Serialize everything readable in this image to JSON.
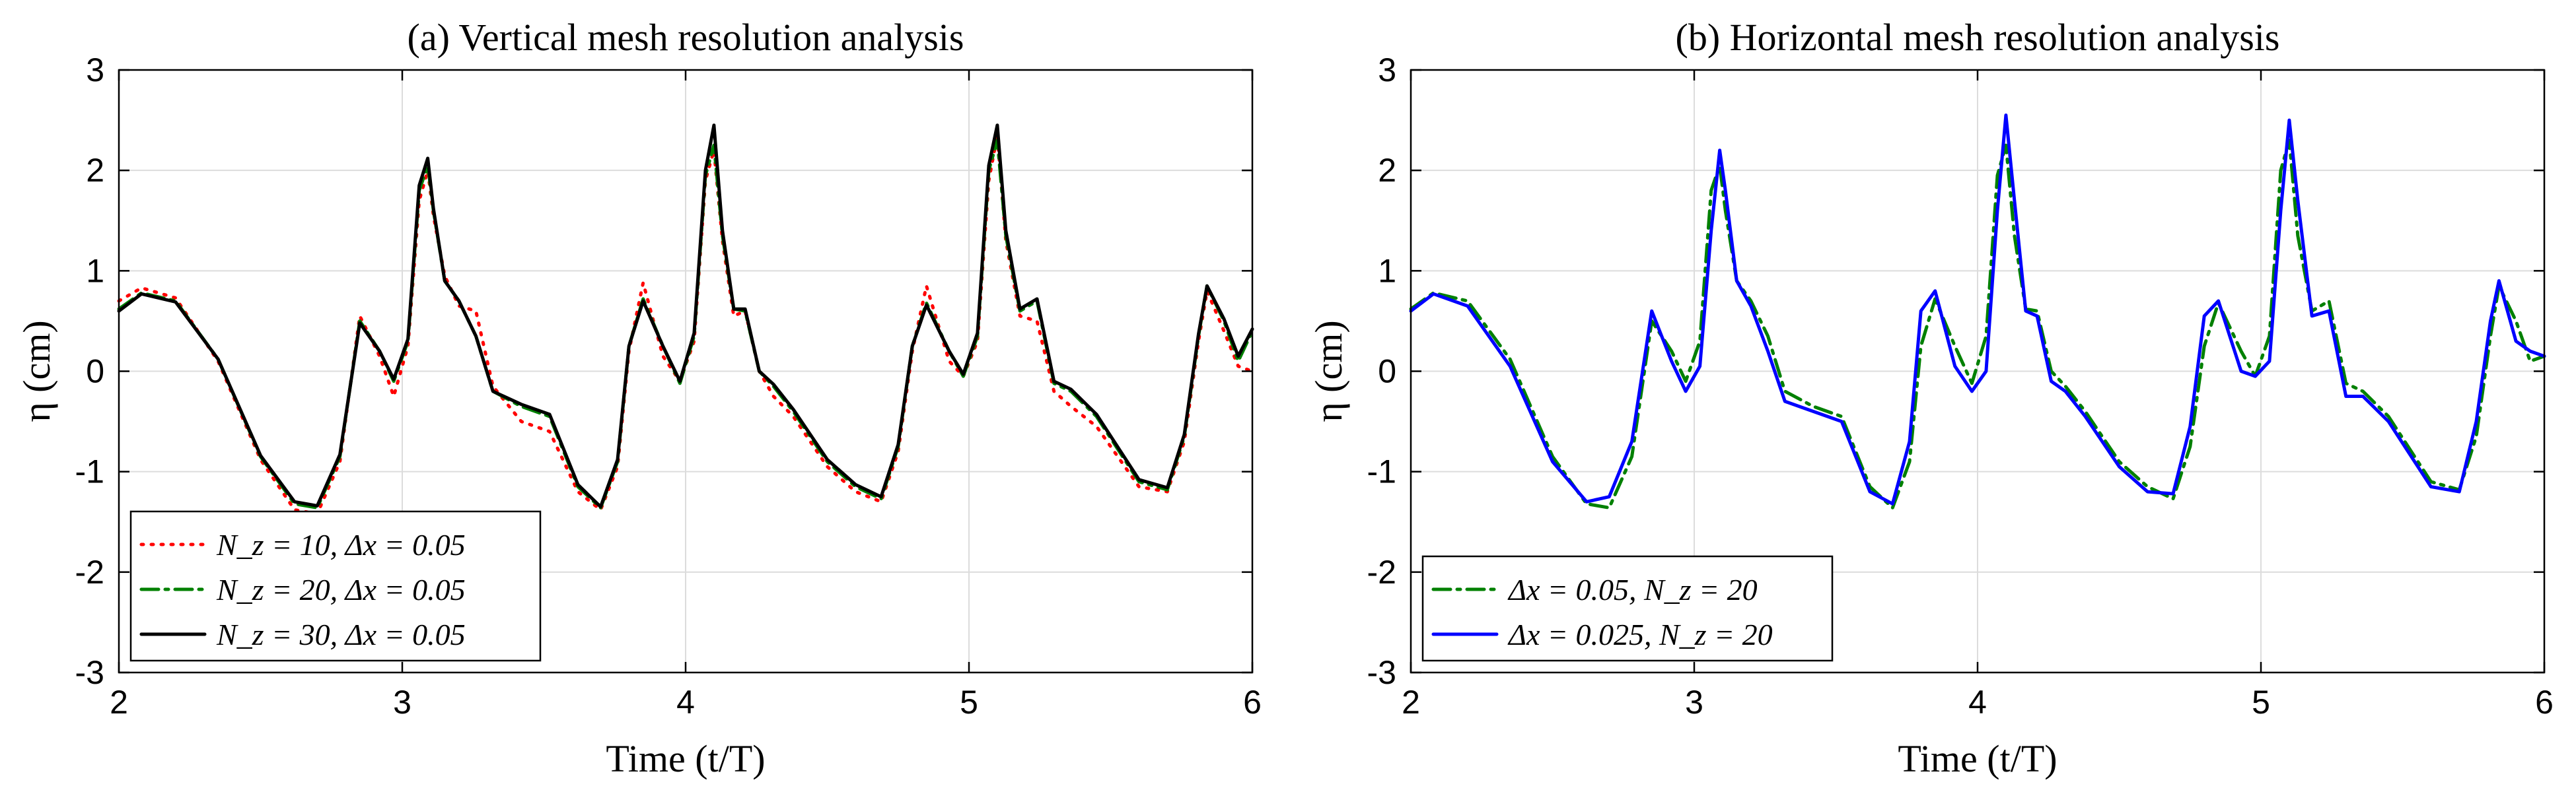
{
  "chart_data": [
    {
      "type": "line",
      "title": "(a) Vertical mesh resolution analysis",
      "xlabel": "Time (t/T)",
      "ylabel": "η (cm)",
      "xlim": [
        2,
        6
      ],
      "ylim": [
        -3,
        3
      ],
      "xticks": [
        "2",
        "3",
        "4",
        "5",
        "6"
      ],
      "yticks": [
        "3",
        "2",
        "1",
        "0",
        "-1",
        "-2",
        "-3"
      ],
      "grid": true,
      "legend_position": "bottom-left",
      "series": [
        {
          "name": "N_z = 10, Δx = 0.05",
          "color": "#ff0000",
          "style": "dotted",
          "x": [
            2.0,
            2.08,
            2.2,
            2.35,
            2.5,
            2.62,
            2.7,
            2.78,
            2.85,
            2.92,
            2.97,
            3.02,
            3.06,
            3.09,
            3.11,
            3.15,
            3.2,
            3.26,
            3.32,
            3.42,
            3.52,
            3.62,
            3.7,
            3.76,
            3.8,
            3.85,
            3.92,
            3.98,
            4.03,
            4.07,
            4.1,
            4.13,
            4.17,
            4.21,
            4.26,
            4.31,
            4.38,
            4.5,
            4.6,
            4.69,
            4.75,
            4.8,
            4.85,
            4.93,
            4.98,
            5.03,
            5.07,
            5.1,
            5.13,
            5.18,
            5.24,
            5.3,
            5.36,
            5.45,
            5.6,
            5.7,
            5.76,
            5.81,
            5.84,
            5.9,
            5.95,
            6.0
          ],
          "values": [
            0.7,
            0.83,
            0.73,
            0.1,
            -0.88,
            -1.38,
            -1.42,
            -0.9,
            0.55,
            0.15,
            -0.25,
            0.25,
            1.7,
            2.0,
            1.55,
            0.95,
            0.65,
            0.6,
            -0.15,
            -0.5,
            -0.6,
            -1.2,
            -1.38,
            -0.95,
            0.2,
            0.88,
            0.15,
            -0.1,
            0.3,
            1.9,
            2.2,
            1.3,
            0.55,
            0.6,
            0.0,
            -0.25,
            -0.45,
            -0.95,
            -1.2,
            -1.3,
            -0.8,
            0.2,
            0.85,
            0.1,
            -0.05,
            0.3,
            1.9,
            2.35,
            1.3,
            0.55,
            0.5,
            -0.2,
            -0.35,
            -0.55,
            -1.15,
            -1.2,
            -0.7,
            0.3,
            0.8,
            0.4,
            0.05,
            0.0
          ]
        },
        {
          "name": "N_z = 20, Δx = 0.05",
          "color": "#008000",
          "style": "dashdot",
          "x": [
            2.0,
            2.08,
            2.2,
            2.35,
            2.5,
            2.62,
            2.7,
            2.78,
            2.85,
            2.92,
            2.97,
            3.02,
            3.06,
            3.09,
            3.11,
            3.15,
            3.2,
            3.26,
            3.32,
            3.42,
            3.52,
            3.62,
            3.7,
            3.76,
            3.8,
            3.85,
            3.92,
            3.98,
            4.03,
            4.07,
            4.1,
            4.13,
            4.17,
            4.21,
            4.26,
            4.31,
            4.38,
            4.5,
            4.6,
            4.69,
            4.75,
            4.8,
            4.85,
            4.93,
            4.98,
            5.03,
            5.07,
            5.1,
            5.13,
            5.18,
            5.24,
            5.3,
            5.36,
            5.45,
            5.6,
            5.7,
            5.76,
            5.81,
            5.84,
            5.9,
            5.95,
            6.0
          ],
          "values": [
            0.62,
            0.78,
            0.7,
            0.12,
            -0.85,
            -1.32,
            -1.36,
            -0.85,
            0.5,
            0.2,
            -0.1,
            0.3,
            1.8,
            2.05,
            1.6,
            0.9,
            0.7,
            0.35,
            -0.2,
            -0.35,
            -0.45,
            -1.15,
            -1.36,
            -0.9,
            0.25,
            0.72,
            0.25,
            -0.12,
            0.35,
            1.95,
            2.25,
            1.35,
            0.62,
            0.6,
            0.0,
            -0.15,
            -0.4,
            -0.9,
            -1.15,
            -1.27,
            -0.75,
            0.25,
            0.68,
            0.2,
            -0.05,
            0.35,
            2.0,
            2.3,
            1.35,
            0.6,
            0.7,
            -0.12,
            -0.2,
            -0.45,
            -1.1,
            -1.18,
            -0.65,
            0.35,
            0.85,
            0.5,
            0.1,
            0.4
          ]
        },
        {
          "name": "N_z = 30, Δx = 0.05",
          "color": "#000000",
          "style": "solid",
          "x": [
            2.0,
            2.08,
            2.2,
            2.35,
            2.5,
            2.62,
            2.7,
            2.78,
            2.85,
            2.92,
            2.97,
            3.02,
            3.06,
            3.09,
            3.11,
            3.15,
            3.2,
            3.26,
            3.32,
            3.42,
            3.52,
            3.62,
            3.7,
            3.76,
            3.8,
            3.85,
            3.92,
            3.98,
            4.03,
            4.07,
            4.1,
            4.13,
            4.17,
            4.21,
            4.26,
            4.31,
            4.38,
            4.5,
            4.6,
            4.69,
            4.75,
            4.8,
            4.85,
            4.93,
            4.98,
            5.03,
            5.07,
            5.1,
            5.13,
            5.18,
            5.24,
            5.3,
            5.36,
            5.45,
            5.6,
            5.7,
            5.76,
            5.81,
            5.84,
            5.9,
            5.95,
            6.0
          ],
          "values": [
            0.6,
            0.77,
            0.69,
            0.12,
            -0.84,
            -1.3,
            -1.34,
            -0.83,
            0.48,
            0.2,
            -0.08,
            0.32,
            1.85,
            2.12,
            1.62,
            0.9,
            0.7,
            0.35,
            -0.2,
            -0.33,
            -0.43,
            -1.13,
            -1.35,
            -0.88,
            0.25,
            0.7,
            0.25,
            -0.1,
            0.38,
            2.0,
            2.45,
            1.4,
            0.62,
            0.62,
            0.0,
            -0.13,
            -0.38,
            -0.88,
            -1.13,
            -1.25,
            -0.73,
            0.25,
            0.66,
            0.2,
            -0.03,
            0.38,
            2.05,
            2.45,
            1.4,
            0.62,
            0.72,
            -0.1,
            -0.18,
            -0.43,
            -1.08,
            -1.16,
            -0.63,
            0.37,
            0.85,
            0.52,
            0.15,
            0.42
          ]
        }
      ]
    },
    {
      "type": "line",
      "title": "(b) Horizontal mesh resolution analysis",
      "xlabel": "Time (t/T)",
      "ylabel": "η (cm)",
      "xlim": [
        2,
        6
      ],
      "ylim": [
        -3,
        3
      ],
      "xticks": [
        "2",
        "3",
        "4",
        "5",
        "6"
      ],
      "yticks": [
        "3",
        "2",
        "1",
        "0",
        "-1",
        "-2",
        "-3"
      ],
      "grid": true,
      "legend_position": "bottom-left",
      "series": [
        {
          "name": "Δx = 0.05, N_z = 20",
          "color": "#008000",
          "style": "dashdot",
          "x": [
            2.0,
            2.08,
            2.2,
            2.35,
            2.5,
            2.62,
            2.7,
            2.78,
            2.85,
            2.92,
            2.97,
            3.02,
            3.06,
            3.09,
            3.11,
            3.15,
            3.2,
            3.26,
            3.32,
            3.42,
            3.52,
            3.62,
            3.7,
            3.76,
            3.8,
            3.85,
            3.92,
            3.98,
            4.03,
            4.07,
            4.1,
            4.13,
            4.17,
            4.21,
            4.26,
            4.31,
            4.38,
            4.5,
            4.6,
            4.69,
            4.75,
            4.8,
            4.85,
            4.93,
            4.98,
            5.03,
            5.07,
            5.1,
            5.13,
            5.18,
            5.24,
            5.3,
            5.36,
            5.45,
            5.6,
            5.7,
            5.76,
            5.81,
            5.84,
            5.9,
            5.95,
            6.0
          ],
          "values": [
            0.62,
            0.78,
            0.7,
            0.12,
            -0.85,
            -1.32,
            -1.36,
            -0.85,
            0.5,
            0.2,
            -0.1,
            0.3,
            1.8,
            2.05,
            1.6,
            0.9,
            0.7,
            0.35,
            -0.2,
            -0.35,
            -0.45,
            -1.15,
            -1.36,
            -0.9,
            0.25,
            0.72,
            0.25,
            -0.12,
            0.35,
            1.95,
            2.25,
            1.35,
            0.62,
            0.6,
            0.0,
            -0.15,
            -0.4,
            -0.9,
            -1.15,
            -1.27,
            -0.75,
            0.25,
            0.68,
            0.2,
            -0.05,
            0.35,
            2.0,
            2.3,
            1.35,
            0.6,
            0.7,
            -0.12,
            -0.2,
            -0.45,
            -1.1,
            -1.18,
            -0.65,
            0.35,
            0.85,
            0.5,
            0.1,
            0.15
          ]
        },
        {
          "name": "Δx = 0.025, N_z = 20",
          "color": "#0000ff",
          "style": "solid",
          "x": [
            2.0,
            2.08,
            2.2,
            2.35,
            2.5,
            2.62,
            2.7,
            2.78,
            2.85,
            2.92,
            2.97,
            3.02,
            3.06,
            3.09,
            3.11,
            3.15,
            3.2,
            3.26,
            3.32,
            3.42,
            3.52,
            3.62,
            3.7,
            3.76,
            3.8,
            3.85,
            3.92,
            3.98,
            4.03,
            4.07,
            4.1,
            4.13,
            4.17,
            4.21,
            4.26,
            4.31,
            4.38,
            4.5,
            4.6,
            4.69,
            4.75,
            4.8,
            4.85,
            4.93,
            4.98,
            5.03,
            5.07,
            5.1,
            5.13,
            5.18,
            5.24,
            5.3,
            5.36,
            5.45,
            5.6,
            5.7,
            5.76,
            5.81,
            5.84,
            5.9,
            5.95,
            6.0
          ],
          "values": [
            0.6,
            0.77,
            0.65,
            0.05,
            -0.9,
            -1.3,
            -1.25,
            -0.7,
            0.6,
            0.1,
            -0.2,
            0.05,
            1.4,
            2.2,
            1.8,
            0.9,
            0.65,
            0.2,
            -0.3,
            -0.4,
            -0.5,
            -1.2,
            -1.32,
            -0.7,
            0.6,
            0.8,
            0.05,
            -0.2,
            0.0,
            1.6,
            2.55,
            1.7,
            0.6,
            0.55,
            -0.1,
            -0.2,
            -0.45,
            -0.95,
            -1.2,
            -1.22,
            -0.55,
            0.55,
            0.7,
            0.0,
            -0.05,
            0.1,
            1.6,
            2.5,
            1.7,
            0.55,
            0.6,
            -0.25,
            -0.25,
            -0.5,
            -1.15,
            -1.2,
            -0.5,
            0.5,
            0.9,
            0.3,
            0.2,
            0.15
          ]
        }
      ]
    }
  ]
}
